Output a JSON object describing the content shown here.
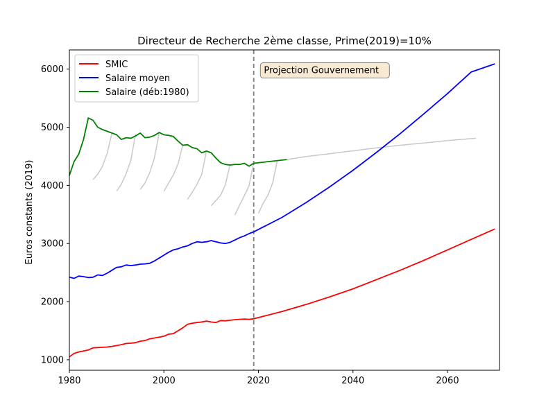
{
  "chart_data": {
    "type": "line",
    "title": "Directeur de Recherche 2ème classe, Prime(2019)=10%",
    "xlabel": "",
    "ylabel": "Euros constants (2019)",
    "xlim": [
      1980,
      2071
    ],
    "ylim": [
      820,
      6330
    ],
    "x_ticks": [
      1980,
      2000,
      2020,
      2040,
      2060
    ],
    "y_ticks": [
      1000,
      2000,
      3000,
      4000,
      5000,
      6000
    ],
    "grid": false,
    "legend_position": "top-left",
    "vline": {
      "x": 2019,
      "color": "#808080",
      "style": "dashed"
    },
    "annotation": {
      "text": "Projection Gouvernement",
      "x": 2021,
      "y": 5990
    },
    "series": [
      {
        "name": "SMIC",
        "color": "#ff0000",
        "x": [
          1980,
          1981,
          1982,
          1983,
          1984,
          1985,
          1986,
          1987,
          1988,
          1989,
          1990,
          1991,
          1992,
          1993,
          1994,
          1995,
          1996,
          1997,
          1998,
          1999,
          2000,
          2001,
          2002,
          2003,
          2004,
          2005,
          2006,
          2007,
          2008,
          2009,
          2010,
          2011,
          2012,
          2013,
          2014,
          2015,
          2016,
          2017,
          2018,
          2019,
          2025,
          2030,
          2035,
          2040,
          2045,
          2050,
          2055,
          2060,
          2065,
          2070
        ],
        "y": [
          1050,
          1110,
          1135,
          1150,
          1170,
          1205,
          1210,
          1215,
          1220,
          1230,
          1245,
          1260,
          1280,
          1285,
          1295,
          1320,
          1330,
          1360,
          1375,
          1390,
          1405,
          1440,
          1450,
          1500,
          1550,
          1610,
          1630,
          1640,
          1650,
          1665,
          1650,
          1640,
          1675,
          1670,
          1680,
          1690,
          1695,
          1700,
          1695,
          1705,
          1830,
          1950,
          2080,
          2220,
          2380,
          2540,
          2710,
          2890,
          3070,
          3250
        ]
      },
      {
        "name": "Salaire moyen",
        "color": "#0000ff",
        "x": [
          1980,
          1981,
          1982,
          1983,
          1984,
          1985,
          1986,
          1987,
          1988,
          1989,
          1990,
          1991,
          1992,
          1993,
          1994,
          1995,
          1996,
          1997,
          1998,
          1999,
          2000,
          2001,
          2002,
          2003,
          2004,
          2005,
          2006,
          2007,
          2008,
          2009,
          2010,
          2011,
          2012,
          2013,
          2014,
          2015,
          2016,
          2017,
          2018,
          2019,
          2025,
          2030,
          2035,
          2040,
          2045,
          2050,
          2055,
          2060,
          2065,
          2070
        ],
        "y": [
          2420,
          2400,
          2440,
          2430,
          2415,
          2420,
          2460,
          2450,
          2490,
          2540,
          2590,
          2600,
          2630,
          2620,
          2630,
          2645,
          2650,
          2660,
          2700,
          2750,
          2800,
          2850,
          2890,
          2910,
          2940,
          2960,
          3000,
          3030,
          3020,
          3030,
          3050,
          3030,
          3010,
          3000,
          3020,
          3060,
          3100,
          3130,
          3170,
          3200,
          3450,
          3700,
          3970,
          4260,
          4570,
          4890,
          5230,
          5580,
          5950,
          6090
        ]
      },
      {
        "name": "Salaire (déb:1980)",
        "color": "#008000",
        "x": [
          1980,
          1981,
          1982,
          1983,
          1984,
          1985,
          1986,
          1987,
          1988,
          1989,
          1990,
          1991,
          1992,
          1993,
          1994,
          1995,
          1996,
          1997,
          1998,
          1999,
          2000,
          2001,
          2002,
          2003,
          2004,
          2005,
          2006,
          2007,
          2008,
          2009,
          2010,
          2011,
          2012,
          2013,
          2014,
          2015,
          2016,
          2017,
          2018,
          2019,
          2026
        ],
        "y": [
          4170,
          4410,
          4540,
          4790,
          5160,
          5120,
          5000,
          4960,
          4930,
          4900,
          4870,
          4790,
          4820,
          4810,
          4850,
          4900,
          4820,
          4830,
          4860,
          4910,
          4870,
          4860,
          4840,
          4760,
          4690,
          4700,
          4650,
          4630,
          4560,
          4590,
          4560,
          4470,
          4390,
          4360,
          4350,
          4360,
          4360,
          4380,
          4330,
          4380,
          4445
        ]
      }
    ],
    "gray_lines": [
      {
        "x": [
          1985,
          1986,
          1987,
          1988,
          1989
        ],
        "y": [
          4100,
          4190,
          4330,
          4550,
          4900
        ]
      },
      {
        "x": [
          1990,
          1991,
          1992,
          1993,
          1994
        ],
        "y": [
          3900,
          4020,
          4200,
          4430,
          4880
        ]
      },
      {
        "x": [
          1995,
          1996,
          1997,
          1998,
          1999
        ],
        "y": [
          3930,
          4040,
          4220,
          4470,
          4910
        ]
      },
      {
        "x": [
          2000,
          2001,
          2002,
          2003,
          2004
        ],
        "y": [
          3900,
          4040,
          4180,
          4370,
          4700
        ]
      },
      {
        "x": [
          2005,
          2006,
          2007,
          2008,
          2009
        ],
        "y": [
          3760,
          3880,
          4020,
          4190,
          4590
        ]
      },
      {
        "x": [
          2010,
          2011,
          2012,
          2013,
          2014
        ],
        "y": [
          3650,
          3740,
          3830,
          4010,
          4350
        ]
      },
      {
        "x": [
          2015,
          2016,
          2017,
          2018,
          2019
        ],
        "y": [
          3490,
          3660,
          3820,
          3990,
          4390
        ]
      },
      {
        "x": [
          2020,
          2021,
          2022,
          2023,
          2024
        ],
        "y": [
          3520,
          3690,
          3830,
          4040,
          4430
        ]
      },
      {
        "x": [
          2026,
          2030,
          2035,
          2040,
          2045,
          2050,
          2055,
          2060,
          2066
        ],
        "y": [
          4445,
          4495,
          4545,
          4595,
          4645,
          4690,
          4730,
          4770,
          4810
        ]
      }
    ],
    "gray_color": "#c8c8c8"
  }
}
